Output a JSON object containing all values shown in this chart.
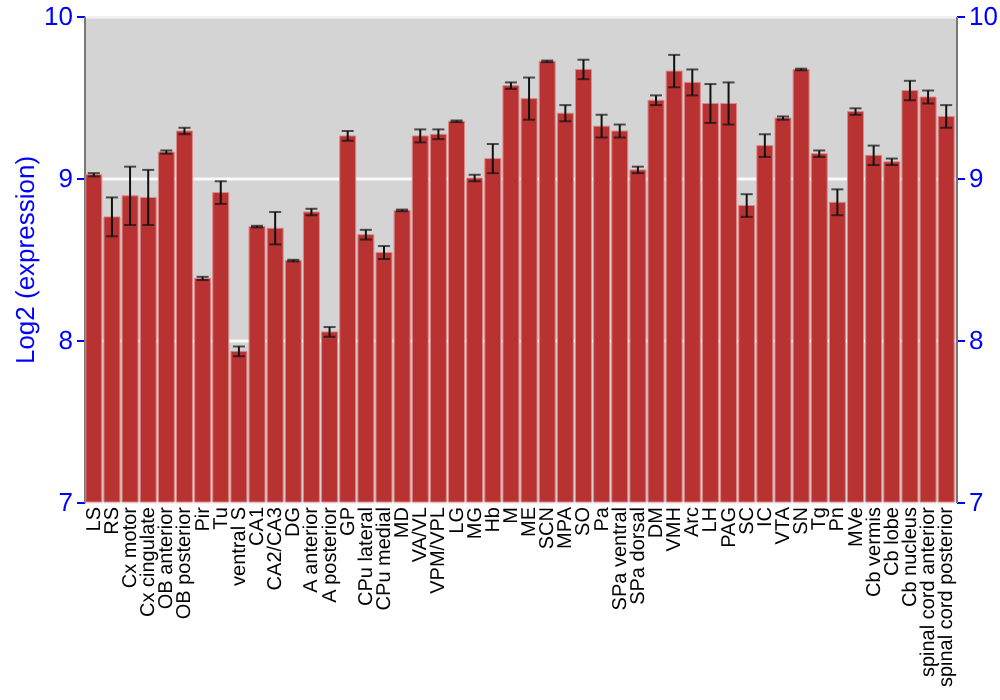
{
  "chart_data": {
    "type": "bar",
    "ylabel": "Log2 (expression)",
    "categories": [
      "LS",
      "RS",
      "Cx motor",
      "Cx cingulate",
      "OB anterior",
      "OB posterior",
      "Pir",
      "Tu",
      "ventral S",
      "CA1",
      "CA2/CA3",
      "DG",
      "A anterior",
      "A posterior",
      "GP",
      "CPu lateral",
      "CPu medial",
      "MD",
      "VA/VL",
      "VPM/VPL",
      "LG",
      "MG",
      "Hb",
      "M",
      "ME",
      "SCN",
      "MPA",
      "SO",
      "Pa",
      "SPa ventral",
      "SPa dorsal",
      "DM",
      "VMH",
      "Arc",
      "LH",
      "PAG",
      "SC",
      "IC",
      "VTA",
      "SN",
      "Tg",
      "Pn",
      "MVe",
      "Cb vermis",
      "Cb lobe",
      "Cb nucleus",
      "spinal cord anterior",
      "spinal cord posterior"
    ],
    "values": [
      9.02,
      8.76,
      8.89,
      8.88,
      9.16,
      9.29,
      8.38,
      8.91,
      7.93,
      8.7,
      8.69,
      8.49,
      8.79,
      8.05,
      9.26,
      8.65,
      8.54,
      8.8,
      9.26,
      9.27,
      9.35,
      9.0,
      9.12,
      9.57,
      9.49,
      9.72,
      9.4,
      9.67,
      9.32,
      9.29,
      9.05,
      9.48,
      9.66,
      9.59,
      9.46,
      9.46,
      8.83,
      9.2,
      9.37,
      9.67,
      9.15,
      8.85,
      9.41,
      9.14,
      9.1,
      9.54,
      9.5,
      9.38
    ],
    "errors": [
      0.01,
      0.12,
      0.18,
      0.17,
      0.01,
      0.02,
      0.01,
      0.07,
      0.03,
      0.005,
      0.1,
      0.005,
      0.02,
      0.03,
      0.03,
      0.03,
      0.04,
      0.005,
      0.04,
      0.03,
      0.005,
      0.02,
      0.09,
      0.02,
      0.13,
      0.005,
      0.05,
      0.06,
      0.07,
      0.04,
      0.02,
      0.03,
      0.1,
      0.08,
      0.12,
      0.13,
      0.07,
      0.07,
      0.01,
      0.005,
      0.02,
      0.08,
      0.02,
      0.06,
      0.02,
      0.06,
      0.04,
      0.07
    ],
    "color": "#b83232",
    "ylim": [
      7,
      10
    ],
    "yticks": [
      7,
      8,
      9,
      10
    ],
    "y2lim": [
      7,
      10
    ],
    "y2ticks": [
      7,
      8,
      9,
      10
    ],
    "grid": "y"
  }
}
